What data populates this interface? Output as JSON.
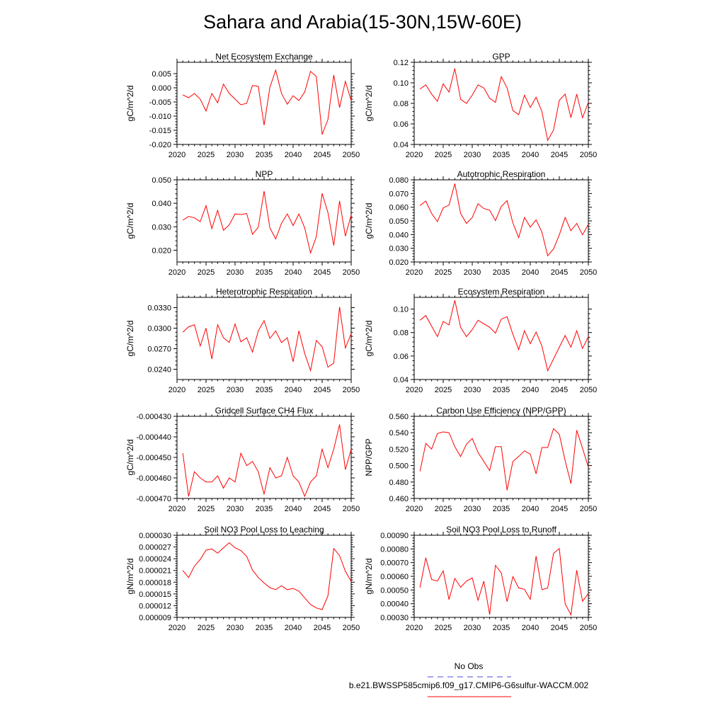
{
  "title": "Sahara and Arabia(15-30N,15W-60E)",
  "legend": {
    "entries": [
      {
        "label": "No Obs",
        "color": "#4a4ae0",
        "dash": "dashed"
      },
      {
        "label": "b.e21.BWSSP585cmip6.f09_g17.CMIP6-G6sulfur-WACCM.002",
        "color": "#ff0000",
        "dash": "solid"
      }
    ]
  },
  "chart_data": [
    {
      "type": "line",
      "title": "Net Ecosystem Exchange",
      "ylabel": "gC/m^2/d",
      "xlim": [
        2020,
        2050
      ],
      "xticks": [
        2020,
        2025,
        2030,
        2035,
        2040,
        2045,
        2050
      ],
      "ylim": [
        -0.02,
        0.009
      ],
      "yticks": [
        -0.02,
        -0.015,
        -0.01,
        -0.005,
        0.0,
        0.005
      ],
      "ytick_labels": [
        "-0.020",
        "-0.015",
        "-0.010",
        "-0.005",
        "0.000",
        "0.005"
      ],
      "x": [
        2021,
        2022,
        2023,
        2024,
        2025,
        2026,
        2027,
        2028,
        2029,
        2030,
        2031,
        2032,
        2033,
        2034,
        2035,
        2036,
        2037,
        2038,
        2039,
        2040,
        2041,
        2042,
        2043,
        2044,
        2045,
        2046,
        2047,
        2048,
        2049,
        2050
      ],
      "series": [
        {
          "values": [
            -0.0025,
            -0.0035,
            -0.002,
            -0.004,
            -0.0082,
            -0.002,
            -0.0053,
            0.0013,
            -0.002,
            -0.004,
            -0.006,
            -0.0055,
            0.0008,
            0.0005,
            -0.0132,
            0.0002,
            0.0062,
            -0.002,
            -0.0058,
            -0.0028,
            -0.0045,
            -0.0015,
            0.0058,
            0.004,
            -0.0165,
            -0.0112,
            0.0045,
            -0.007,
            0.0023,
            -0.0045
          ]
        }
      ]
    },
    {
      "type": "line",
      "title": "GPP",
      "ylabel": "gC/m^2/d",
      "xlim": [
        2020,
        2050
      ],
      "xticks": [
        2020,
        2025,
        2030,
        2035,
        2040,
        2045,
        2050
      ],
      "ylim": [
        0.04,
        0.12
      ],
      "yticks": [
        0.04,
        0.06,
        0.08,
        0.1,
        0.12
      ],
      "ytick_labels": [
        "0.04",
        "0.06",
        "0.08",
        "0.10",
        "0.12"
      ],
      "x": [
        2021,
        2022,
        2023,
        2024,
        2025,
        2026,
        2027,
        2028,
        2029,
        2030,
        2031,
        2032,
        2033,
        2034,
        2035,
        2036,
        2037,
        2038,
        2039,
        2040,
        2041,
        2042,
        2043,
        2044,
        2045,
        2046,
        2047,
        2048,
        2049,
        2050
      ],
      "series": [
        {
          "values": [
            0.094,
            0.098,
            0.089,
            0.082,
            0.099,
            0.091,
            0.114,
            0.084,
            0.08,
            0.088,
            0.098,
            0.095,
            0.085,
            0.081,
            0.106,
            0.095,
            0.073,
            0.069,
            0.088,
            0.076,
            0.086,
            0.072,
            0.044,
            0.054,
            0.083,
            0.089,
            0.066,
            0.089,
            0.066,
            0.081
          ]
        }
      ]
    },
    {
      "type": "line",
      "title": "NPP",
      "ylabel": "gC/m^2/d",
      "xlim": [
        2020,
        2050
      ],
      "xticks": [
        2020,
        2025,
        2030,
        2035,
        2040,
        2045,
        2050
      ],
      "ylim": [
        0.015,
        0.05
      ],
      "yticks": [
        0.02,
        0.03,
        0.04,
        0.05
      ],
      "ytick_labels": [
        "0.020",
        "0.030",
        "0.040",
        "0.050"
      ],
      "x": [
        2021,
        2022,
        2023,
        2024,
        2025,
        2026,
        2027,
        2028,
        2029,
        2030,
        2031,
        2032,
        2033,
        2034,
        2035,
        2036,
        2037,
        2038,
        2039,
        2040,
        2041,
        2042,
        2043,
        2044,
        2045,
        2046,
        2047,
        2048,
        2049,
        2050
      ],
      "series": [
        {
          "values": [
            0.0328,
            0.0344,
            0.0338,
            0.0322,
            0.039,
            0.0292,
            0.037,
            0.0285,
            0.0308,
            0.0355,
            0.0352,
            0.0357,
            0.0268,
            0.0298,
            0.0452,
            0.0295,
            0.0248,
            0.0315,
            0.0355,
            0.0305,
            0.0355,
            0.0295,
            0.0188,
            0.0258,
            0.0442,
            0.036,
            0.022,
            0.041,
            0.026,
            0.035
          ]
        }
      ]
    },
    {
      "type": "line",
      "title": "Autotrophic Respiration",
      "ylabel": "gC/m^2/d",
      "xlim": [
        2020,
        2050
      ],
      "xticks": [
        2020,
        2025,
        2030,
        2035,
        2040,
        2045,
        2050
      ],
      "ylim": [
        0.02,
        0.08
      ],
      "yticks": [
        0.02,
        0.03,
        0.04,
        0.05,
        0.06,
        0.07,
        0.08
      ],
      "ytick_labels": [
        "0.020",
        "0.030",
        "0.040",
        "0.050",
        "0.060",
        "0.070",
        "0.080"
      ],
      "x": [
        2021,
        2022,
        2023,
        2024,
        2025,
        2026,
        2027,
        2028,
        2029,
        2030,
        2031,
        2032,
        2033,
        2034,
        2035,
        2036,
        2037,
        2038,
        2039,
        2040,
        2041,
        2042,
        2043,
        2044,
        2045,
        2046,
        2047,
        2048,
        2049,
        2050
      ],
      "series": [
        {
          "values": [
            0.0612,
            0.0645,
            0.0555,
            0.0495,
            0.0595,
            0.0615,
            0.0772,
            0.0555,
            0.0482,
            0.0525,
            0.0625,
            0.059,
            0.0578,
            0.0502,
            0.0605,
            0.0648,
            0.0485,
            0.0378,
            0.0525,
            0.0455,
            0.0508,
            0.0418,
            0.0245,
            0.0295,
            0.0398,
            0.0525,
            0.0428,
            0.0482,
            0.0398,
            0.0475
          ]
        }
      ]
    },
    {
      "type": "line",
      "title": "Heterotrophic Respiration",
      "ylabel": "gC/m^2/d",
      "xlim": [
        2020,
        2050
      ],
      "xticks": [
        2020,
        2025,
        2030,
        2035,
        2040,
        2045,
        2050
      ],
      "ylim": [
        0.0225,
        0.0345
      ],
      "yticks": [
        0.024,
        0.027,
        0.03,
        0.033
      ],
      "ytick_labels": [
        "0.0240",
        "0.0270",
        "0.0300",
        "0.0330"
      ],
      "x": [
        2021,
        2022,
        2023,
        2024,
        2025,
        2026,
        2027,
        2028,
        2029,
        2030,
        2031,
        2032,
        2033,
        2034,
        2035,
        2036,
        2037,
        2038,
        2039,
        2040,
        2041,
        2042,
        2043,
        2044,
        2045,
        2046,
        2047,
        2048,
        2049,
        2050
      ],
      "series": [
        {
          "values": [
            0.0294,
            0.0302,
            0.0305,
            0.0274,
            0.03,
            0.0255,
            0.0305,
            0.0286,
            0.0279,
            0.0306,
            0.028,
            0.0286,
            0.0265,
            0.0296,
            0.0311,
            0.0285,
            0.0296,
            0.0279,
            0.0286,
            0.0251,
            0.0296,
            0.0263,
            0.0238,
            0.0282,
            0.0273,
            0.0243,
            0.0249,
            0.0331,
            0.0271,
            0.0292
          ]
        }
      ]
    },
    {
      "type": "line",
      "title": "Ecosystem Respiration",
      "ylabel": "gC/m^2/d",
      "xlim": [
        2020,
        2050
      ],
      "xticks": [
        2020,
        2025,
        2030,
        2035,
        2040,
        2045,
        2050
      ],
      "ylim": [
        0.04,
        0.11
      ],
      "yticks": [
        0.04,
        0.06,
        0.08,
        0.1
      ],
      "ytick_labels": [
        "0.04",
        "0.06",
        "0.08",
        "0.10"
      ],
      "x": [
        2021,
        2022,
        2023,
        2024,
        2025,
        2026,
        2027,
        2028,
        2029,
        2030,
        2031,
        2032,
        2033,
        2034,
        2035,
        2036,
        2037,
        2038,
        2039,
        2040,
        2041,
        2042,
        2043,
        2044,
        2045,
        2046,
        2047,
        2048,
        2049,
        2050
      ],
      "series": [
        {
          "values": [
            0.0905,
            0.0945,
            0.0855,
            0.0765,
            0.0895,
            0.0865,
            0.1075,
            0.0845,
            0.0765,
            0.0825,
            0.0905,
            0.0875,
            0.0845,
            0.0795,
            0.0915,
            0.0935,
            0.0785,
            0.0655,
            0.0815,
            0.0705,
            0.0805,
            0.0685,
            0.0475,
            0.0575,
            0.0675,
            0.0775,
            0.0675,
            0.0815,
            0.0665,
            0.0765
          ]
        }
      ]
    },
    {
      "type": "line",
      "title": "Gridcell Surface CH4 Flux",
      "ylabel": "gC/m^2/d",
      "xlim": [
        2020,
        2050
      ],
      "xticks": [
        2020,
        2025,
        2030,
        2035,
        2040,
        2045,
        2050
      ],
      "ylim": [
        -0.00047,
        -0.00043
      ],
      "yticks": [
        -0.00047,
        -0.00046,
        -0.00045,
        -0.00044,
        -0.00043
      ],
      "ytick_labels": [
        "-0.000470",
        "-0.000460",
        "-0.000450",
        "-0.000440",
        "-0.000430"
      ],
      "x": [
        2021,
        2022,
        2023,
        2024,
        2025,
        2026,
        2027,
        2028,
        2029,
        2030,
        2031,
        2032,
        2033,
        2034,
        2035,
        2036,
        2037,
        2038,
        2039,
        2040,
        2041,
        2042,
        2043,
        2044,
        2045,
        2046,
        2047,
        2048,
        2049,
        2050
      ],
      "series": [
        {
          "values": [
            -0.000448,
            -0.000469,
            -0.000457,
            -0.00046,
            -0.000462,
            -0.000462,
            -0.000459,
            -0.000465,
            -0.00046,
            -0.000462,
            -0.000448,
            -0.000454,
            -0.000452,
            -0.000457,
            -0.000468,
            -0.000455,
            -0.00046,
            -0.000459,
            -0.00045,
            -0.000459,
            -0.000462,
            -0.000469,
            -0.000462,
            -0.000459,
            -0.000446,
            -0.000455,
            -0.000446,
            -0.000434,
            -0.000456,
            -0.000446
          ]
        }
      ]
    },
    {
      "type": "line",
      "title": "Carbon Use Efficiency (NPP/GPP)",
      "ylabel": "NPP/GPP",
      "xlim": [
        2020,
        2050
      ],
      "xticks": [
        2020,
        2025,
        2030,
        2035,
        2040,
        2045,
        2050
      ],
      "ylim": [
        0.46,
        0.56
      ],
      "yticks": [
        0.46,
        0.48,
        0.5,
        0.52,
        0.54,
        0.56
      ],
      "ytick_labels": [
        "0.460",
        "0.480",
        "0.500",
        "0.520",
        "0.540",
        "0.560"
      ],
      "x": [
        2021,
        2022,
        2023,
        2024,
        2025,
        2026,
        2027,
        2028,
        2029,
        2030,
        2031,
        2032,
        2033,
        2034,
        2035,
        2036,
        2037,
        2038,
        2039,
        2040,
        2041,
        2042,
        2043,
        2044,
        2045,
        2046,
        2047,
        2048,
        2049,
        2050
      ],
      "series": [
        {
          "values": [
            0.493,
            0.527,
            0.52,
            0.539,
            0.541,
            0.54,
            0.523,
            0.511,
            0.526,
            0.533,
            0.516,
            0.505,
            0.494,
            0.523,
            0.523,
            0.47,
            0.505,
            0.511,
            0.518,
            0.514,
            0.49,
            0.522,
            0.522,
            0.545,
            0.538,
            0.506,
            0.478,
            0.543,
            0.521,
            0.498
          ]
        }
      ]
    },
    {
      "type": "line",
      "title": "Soil NO3 Pool Loss to Leaching",
      "ylabel": "gN/m^2/d",
      "xlim": [
        2020,
        2050
      ],
      "xticks": [
        2020,
        2025,
        2030,
        2035,
        2040,
        2045,
        2050
      ],
      "ylim": [
        9e-06,
        3e-05
      ],
      "yticks": [
        9e-06,
        1.2e-05,
        1.5e-05,
        1.8e-05,
        2.1e-05,
        2.4e-05,
        2.7e-05,
        3e-05
      ],
      "ytick_labels": [
        "0.000009",
        "0.000012",
        "0.000015",
        "0.000018",
        "0.000021",
        "0.000024",
        "0.000027",
        "0.000030"
      ],
      "x": [
        2021,
        2022,
        2023,
        2024,
        2025,
        2026,
        2027,
        2028,
        2029,
        2030,
        2031,
        2032,
        2033,
        2034,
        2035,
        2036,
        2037,
        2038,
        2039,
        2040,
        2041,
        2042,
        2043,
        2044,
        2045,
        2046,
        2047,
        2048,
        2049,
        2050
      ],
      "series": [
        {
          "values": [
            2.1e-05,
            1.92e-05,
            2.21e-05,
            2.38e-05,
            2.62e-05,
            2.65e-05,
            2.54e-05,
            2.68e-05,
            2.81e-05,
            2.68e-05,
            2.61e-05,
            2.46e-05,
            2.11e-05,
            1.92e-05,
            1.78e-05,
            1.66e-05,
            1.61e-05,
            1.71e-05,
            1.61e-05,
            1.64e-05,
            1.57e-05,
            1.4e-05,
            1.23e-05,
            1.14e-05,
            1.1e-05,
            1.45e-05,
            2.66e-05,
            2.48e-05,
            2.08e-05,
            1.82e-05
          ]
        }
      ]
    },
    {
      "type": "line",
      "title": "Soil NO3 Pool Loss to Runoff",
      "ylabel": "gN/m^2/d",
      "xlim": [
        2020,
        2050
      ],
      "xticks": [
        2020,
        2025,
        2030,
        2035,
        2040,
        2045,
        2050
      ],
      "ylim": [
        0.0003,
        0.0009
      ],
      "yticks": [
        0.0003,
        0.0004,
        0.0005,
        0.0006,
        0.0007,
        0.0008,
        0.0009
      ],
      "ytick_labels": [
        "0.00030",
        "0.00040",
        "0.00050",
        "0.00060",
        "0.00070",
        "0.00080",
        "0.00090"
      ],
      "x": [
        2021,
        2022,
        2023,
        2024,
        2025,
        2026,
        2027,
        2028,
        2029,
        2030,
        2031,
        2032,
        2033,
        2034,
        2035,
        2036,
        2037,
        2038,
        2039,
        2040,
        2041,
        2042,
        2043,
        2044,
        2045,
        2046,
        2047,
        2048,
        2049,
        2050
      ],
      "series": [
        {
          "values": [
            0.000518,
            0.000735,
            0.000578,
            0.000565,
            0.00064,
            0.00043,
            0.000585,
            0.00052,
            0.000565,
            0.000588,
            0.000425,
            0.000565,
            0.00032,
            0.00068,
            0.000625,
            0.000415,
            0.000598,
            0.000515,
            0.000505,
            0.000432,
            0.000748,
            0.000502,
            0.000515,
            0.000768,
            0.000802,
            0.0004,
            0.000318,
            0.000645,
            0.000418,
            0.000475
          ]
        }
      ]
    }
  ]
}
